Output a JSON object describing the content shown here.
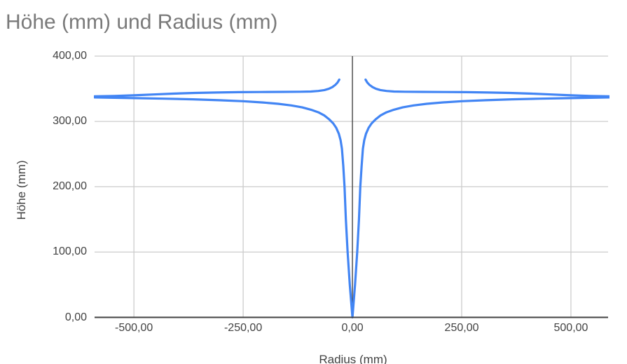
{
  "style": {
    "background": "#ffffff",
    "series_color": "#4285f4",
    "grid_color": "#cccccc",
    "baseline_color": "#424242",
    "title_color": "#7a7a7a",
    "axis_label_color": "#424242"
  },
  "chart_data": {
    "type": "line",
    "title": "Höhe (mm) und Radius (mm)",
    "xlabel": "Radius (mm)",
    "ylabel": "Höhe (mm)",
    "xlim": [
      -590,
      585
    ],
    "ylim": [
      0,
      400
    ],
    "grid": true,
    "legend": "none",
    "baseline": {
      "x": 0,
      "y": 0
    },
    "x_ticks": [
      {
        "value": -500,
        "label": "-500,00"
      },
      {
        "value": -250,
        "label": "-250,00"
      },
      {
        "value": 0,
        "label": "0,00"
      },
      {
        "value": 250,
        "label": "250,00"
      },
      {
        "value": 500,
        "label": "500,00"
      }
    ],
    "y_ticks": [
      {
        "value": 0,
        "label": "0,00"
      },
      {
        "value": 100,
        "label": "100,00"
      },
      {
        "value": 200,
        "label": "200,00"
      },
      {
        "value": 300,
        "label": "300,00"
      },
      {
        "value": 400,
        "label": "400,00"
      }
    ],
    "series": [
      {
        "name": "Höhe (mm)",
        "color": "#4285f4",
        "points": [
          [
            -30,
            364
          ],
          [
            -34,
            359.5
          ],
          [
            -39,
            356
          ],
          [
            -46,
            352.5
          ],
          [
            -54,
            350
          ],
          [
            -64,
            348
          ],
          [
            -78,
            346.6
          ],
          [
            -95,
            345.8
          ],
          [
            -120,
            345.4
          ],
          [
            -160,
            345.2
          ],
          [
            -210,
            345
          ],
          [
            -260,
            344.8
          ],
          [
            -310,
            344.3
          ],
          [
            -360,
            343.6
          ],
          [
            -410,
            342.5
          ],
          [
            -455,
            341.3
          ],
          [
            -500,
            340
          ],
          [
            -545,
            339
          ],
          [
            -590,
            338.4
          ],
          [
            -590,
            336.7
          ],
          [
            -545,
            336.2
          ],
          [
            -500,
            335.7
          ],
          [
            -430,
            334.8
          ],
          [
            -365,
            333.8
          ],
          [
            -305,
            332.5
          ],
          [
            -250,
            331
          ],
          [
            -205,
            329
          ],
          [
            -170,
            327
          ],
          [
            -140,
            324.5
          ],
          [
            -115,
            321.5
          ],
          [
            -95,
            318
          ],
          [
            -78,
            314
          ],
          [
            -64,
            309
          ],
          [
            -53,
            303
          ],
          [
            -44,
            297
          ],
          [
            -37,
            290
          ],
          [
            -31,
            281
          ],
          [
            -27,
            271
          ],
          [
            -24,
            258
          ],
          [
            -21,
            232
          ],
          [
            -18,
            200
          ],
          [
            -15,
            150
          ],
          [
            -11,
            100
          ],
          [
            -6,
            50
          ],
          [
            0,
            0
          ],
          [
            6,
            50
          ],
          [
            11,
            100
          ],
          [
            15,
            150
          ],
          [
            18,
            200
          ],
          [
            21,
            232
          ],
          [
            24,
            258
          ],
          [
            27,
            271
          ],
          [
            31,
            281
          ],
          [
            37,
            290
          ],
          [
            44,
            297
          ],
          [
            53,
            303
          ],
          [
            64,
            309
          ],
          [
            78,
            314
          ],
          [
            95,
            318
          ],
          [
            115,
            321.5
          ],
          [
            140,
            324.5
          ],
          [
            170,
            327
          ],
          [
            205,
            329
          ],
          [
            250,
            331
          ],
          [
            305,
            332.5
          ],
          [
            365,
            333.8
          ],
          [
            430,
            334.8
          ],
          [
            500,
            335.7
          ],
          [
            545,
            336.2
          ],
          [
            590,
            336.7
          ],
          [
            590,
            338.4
          ],
          [
            545,
            339
          ],
          [
            500,
            340
          ],
          [
            455,
            341.3
          ],
          [
            410,
            342.5
          ],
          [
            360,
            343.6
          ],
          [
            310,
            344.3
          ],
          [
            260,
            344.8
          ],
          [
            210,
            345
          ],
          [
            160,
            345.2
          ],
          [
            120,
            345.4
          ],
          [
            95,
            345.8
          ],
          [
            78,
            346.6
          ],
          [
            64,
            348
          ],
          [
            54,
            350
          ],
          [
            46,
            352.5
          ],
          [
            39,
            356
          ],
          [
            34,
            359.5
          ],
          [
            30,
            364
          ]
        ]
      }
    ]
  }
}
